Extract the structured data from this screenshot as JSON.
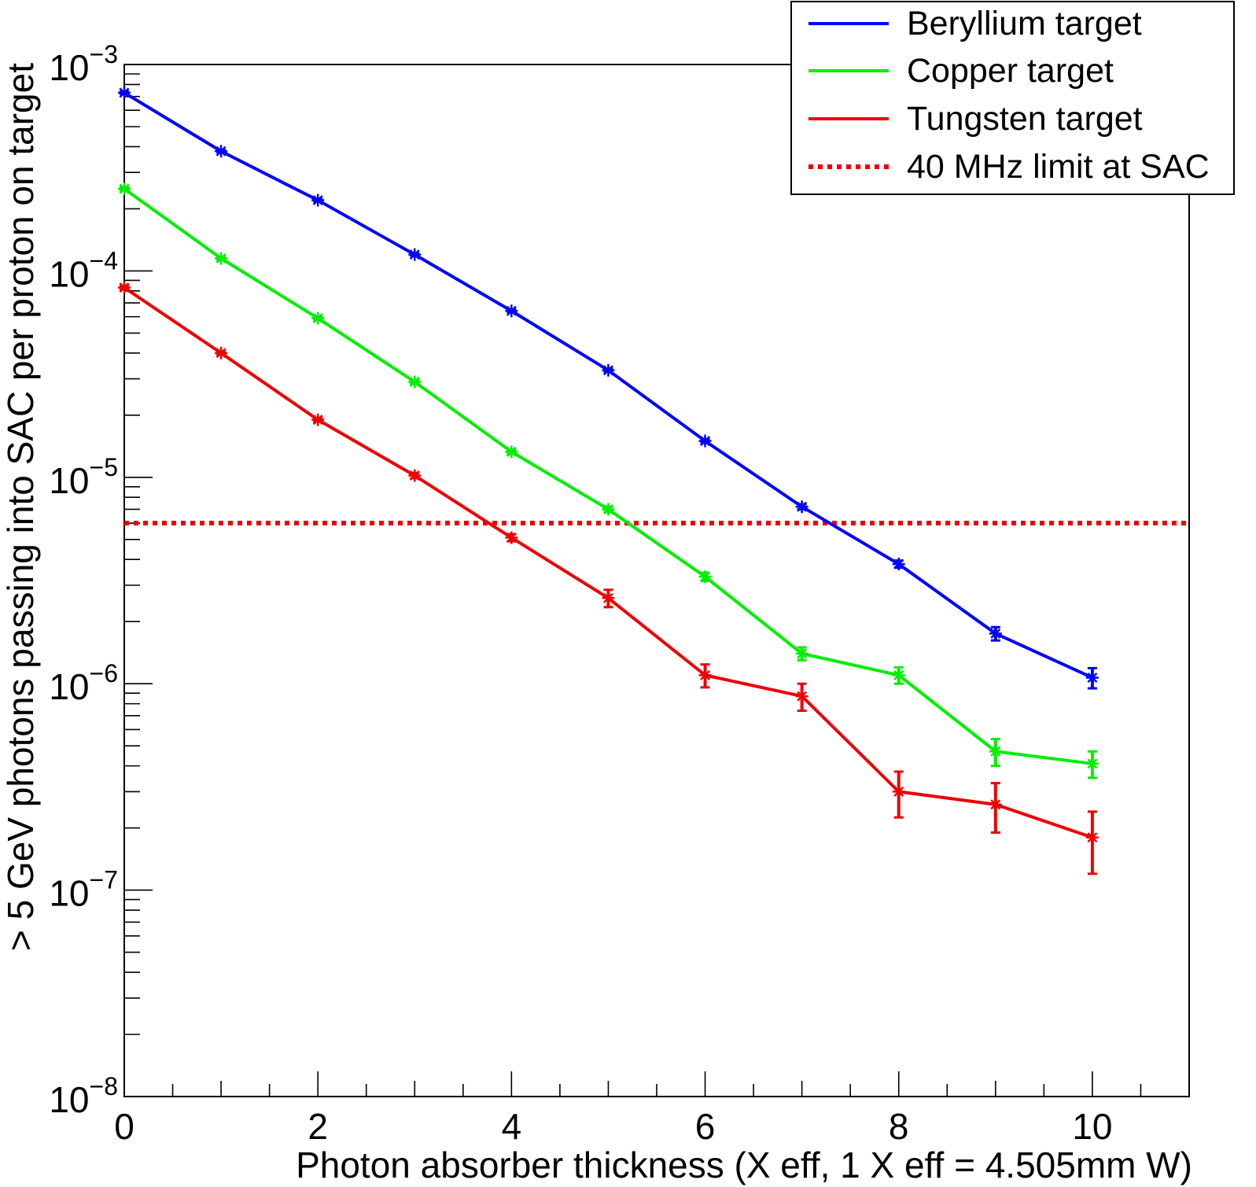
{
  "chart_data": {
    "type": "line",
    "xlabel": "Photon absorber thickness (X eff, 1 X eff = 4.505mm W)",
    "ylabel": "> 5 GeV photons passing into SAC per proton on target",
    "xlim": [
      0,
      11
    ],
    "ylim": [
      1e-08,
      0.001
    ],
    "yscale": "log",
    "x_ticks": [
      0,
      2,
      4,
      6,
      8,
      10
    ],
    "y_ticks": [
      {
        "base": "10",
        "exp": "−8",
        "value": 1e-08
      },
      {
        "base": "10",
        "exp": "−7",
        "value": 1e-07
      },
      {
        "base": "10",
        "exp": "−6",
        "value": 1e-06
      },
      {
        "base": "10",
        "exp": "−5",
        "value": 1e-05
      },
      {
        "base": "10",
        "exp": "−4",
        "value": 0.0001
      },
      {
        "base": "10",
        "exp": "−3",
        "value": 0.001
      }
    ],
    "legend_position": "top-right",
    "x": [
      0,
      1,
      2,
      3,
      4,
      5,
      6,
      7,
      8,
      9,
      10
    ],
    "series": [
      {
        "name": "Beryllium target",
        "color": "#0000ff",
        "values": [
          0.00073,
          0.00038,
          0.00022,
          0.00012,
          6.4e-05,
          3.3e-05,
          1.5e-05,
          7.2e-06,
          3.8e-06,
          1.75e-06,
          1.07e-06
        ],
        "errors": [
          1e-05,
          5e-06,
          3e-06,
          1.5e-06,
          1e-06,
          6e-07,
          3e-07,
          2e-07,
          1.5e-07,
          1.3e-07,
          1.2e-07
        ]
      },
      {
        "name": "Copper target",
        "color": "#00ee00",
        "values": [
          0.00025,
          0.000115,
          5.9e-05,
          2.9e-05,
          1.33e-05,
          7e-06,
          3.3e-06,
          1.4e-06,
          1.1e-06,
          4.7e-07,
          4.1e-07
        ],
        "errors": [
          4e-06,
          2e-06,
          1e-06,
          5e-07,
          3e-07,
          2e-07,
          1.5e-07,
          1e-07,
          1e-07,
          7e-08,
          6e-08
        ]
      },
      {
        "name": "Tungsten target",
        "color": "#ee0000",
        "values": [
          8.3e-05,
          4e-05,
          1.9e-05,
          1.02e-05,
          5.1e-06,
          2.6e-06,
          1.1e-06,
          8.7e-07,
          3e-07,
          2.6e-07,
          1.8e-07
        ],
        "errors": [
          1.5e-06,
          7e-07,
          4e-07,
          3e-07,
          2e-07,
          2.5e-07,
          1.4e-07,
          1.3e-07,
          7.5e-08,
          7e-08,
          6e-08
        ]
      }
    ],
    "reference_lines": [
      {
        "name": "40 MHz limit at SAC",
        "value": 6e-06,
        "color": "#ee0000",
        "style": "dotted"
      }
    ]
  }
}
